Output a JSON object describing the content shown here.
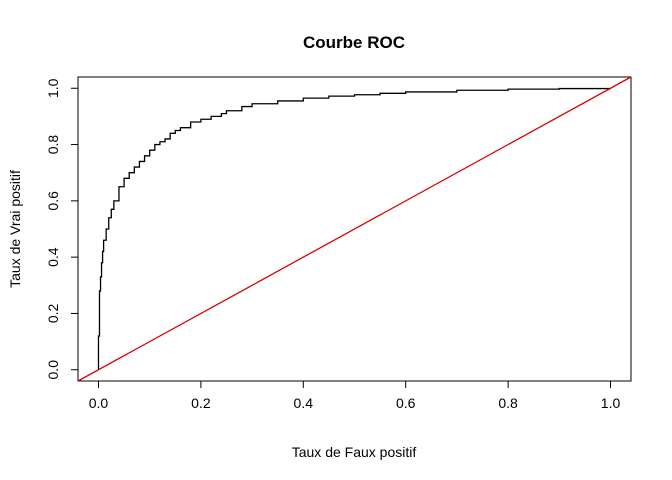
{
  "chart_data": {
    "type": "line",
    "title": "Courbe ROC",
    "xlabel": "Taux de Faux positif",
    "ylabel": "Taux de Vrai positif",
    "xlim": [
      -0.04,
      1.04
    ],
    "ylim": [
      -0.04,
      1.04
    ],
    "grid": false,
    "legend": "none",
    "x_ticks": [
      0.0,
      0.2,
      0.4,
      0.6,
      0.8,
      1.0
    ],
    "y_ticks": [
      0.0,
      0.2,
      0.4,
      0.6,
      0.8,
      1.0
    ],
    "x_tick_labels": [
      "0.0",
      "0.2",
      "0.4",
      "0.6",
      "0.8",
      "1.0"
    ],
    "y_tick_labels": [
      "0.0",
      "0.2",
      "0.4",
      "0.6",
      "0.8",
      "1.0"
    ],
    "series": [
      {
        "color": "#000000",
        "style": "step",
        "x": [
          0.0,
          0.0,
          0.002,
          0.004,
          0.006,
          0.008,
          0.01,
          0.015,
          0.02,
          0.025,
          0.03,
          0.04,
          0.05,
          0.06,
          0.07,
          0.08,
          0.09,
          0.1,
          0.11,
          0.12,
          0.13,
          0.14,
          0.15,
          0.16,
          0.18,
          0.2,
          0.22,
          0.24,
          0.25,
          0.28,
          0.3,
          0.35,
          0.4,
          0.45,
          0.5,
          0.55,
          0.6,
          0.7,
          0.8,
          0.9,
          1.0
        ],
        "y": [
          0.0,
          0.12,
          0.28,
          0.33,
          0.38,
          0.42,
          0.46,
          0.5,
          0.54,
          0.57,
          0.6,
          0.65,
          0.68,
          0.7,
          0.72,
          0.74,
          0.76,
          0.78,
          0.8,
          0.81,
          0.82,
          0.84,
          0.85,
          0.86,
          0.88,
          0.89,
          0.9,
          0.91,
          0.92,
          0.935,
          0.945,
          0.955,
          0.965,
          0.972,
          0.977,
          0.982,
          0.987,
          0.993,
          0.997,
          0.999,
          1.0
        ]
      },
      {
        "color": "#dd0000",
        "style": "line",
        "x": [
          -0.04,
          1.04
        ],
        "y": [
          -0.04,
          1.04
        ]
      }
    ]
  }
}
